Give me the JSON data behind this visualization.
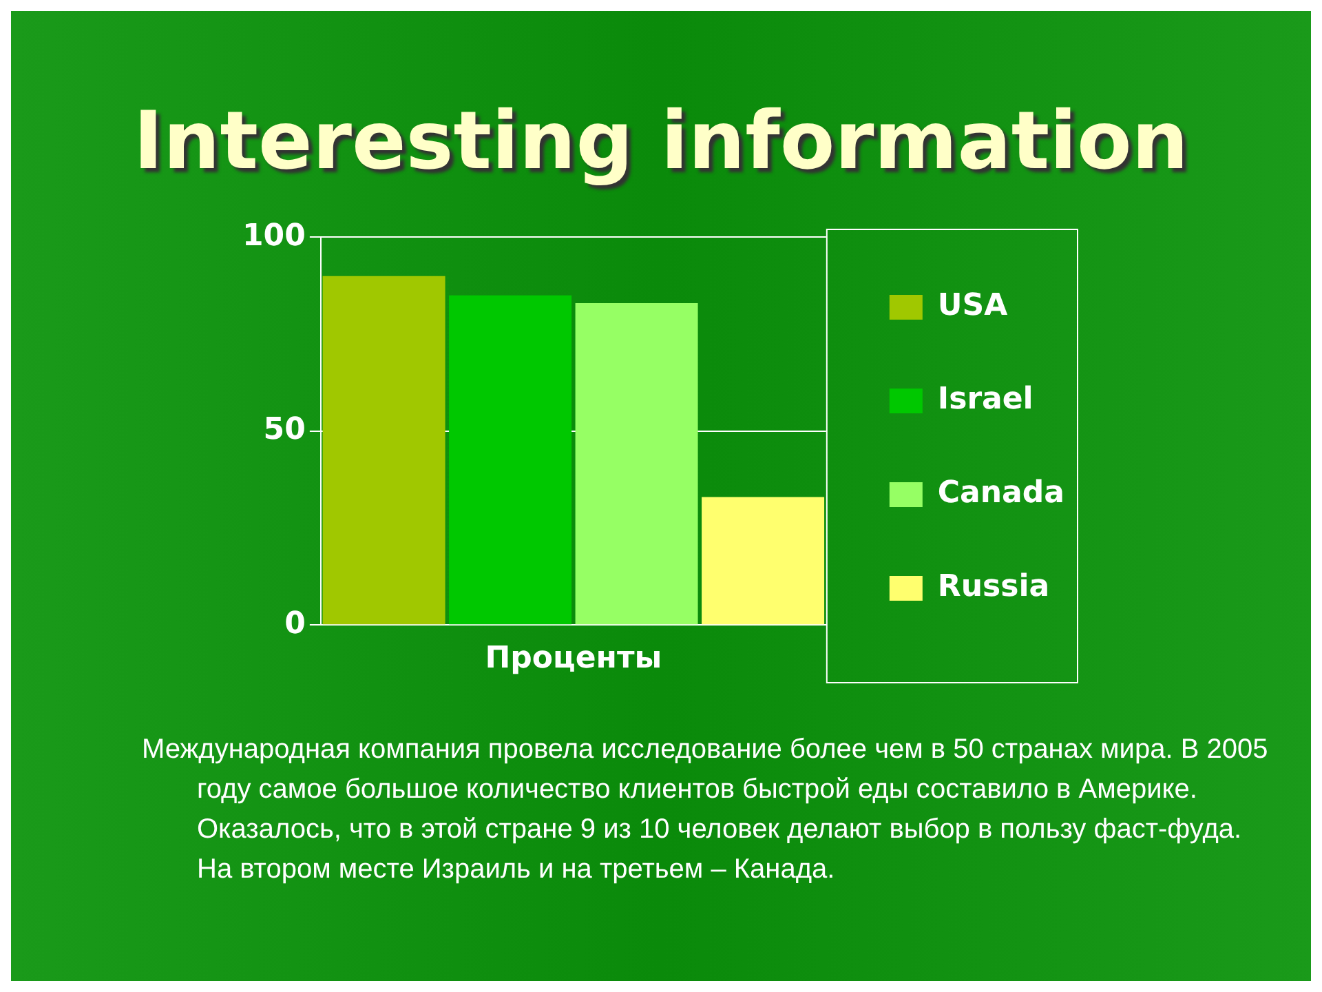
{
  "chart_data": {
    "type": "bar",
    "title": "Interesting information",
    "xlabel": "Проценты",
    "categories": [
      null,
      null,
      null,
      null
    ],
    "series": [
      {
        "name": "USA",
        "color": "#a0c800",
        "values": [
          90,
          null,
          null,
          null
        ]
      },
      {
        "name": "Israel",
        "color": "#00c800",
        "values": [
          null,
          85,
          null,
          null
        ]
      },
      {
        "name": "Canada",
        "color": "#96ff64",
        "values": [
          null,
          null,
          83,
          null
        ]
      },
      {
        "name": "Russia",
        "color": "#ffff6e",
        "values": [
          null,
          null,
          null,
          33
        ]
      }
    ],
    "ylim": [
      0,
      100
    ],
    "yticks": [
      0,
      50,
      100
    ],
    "grid": "y",
    "legend": "right",
    "tick_labels": "y",
    "annotations": [
      "Международная компания провела исследование  более чем в 50 странах мира. В 2005 году самое большое количество клиентов быстрой еды составило в Америке. Оказалось, что в этой стране 9 из 10 человек делают выбор в пользу фаст-фуда. На втором месте Израиль и на третьем – Канада."
    ]
  }
}
